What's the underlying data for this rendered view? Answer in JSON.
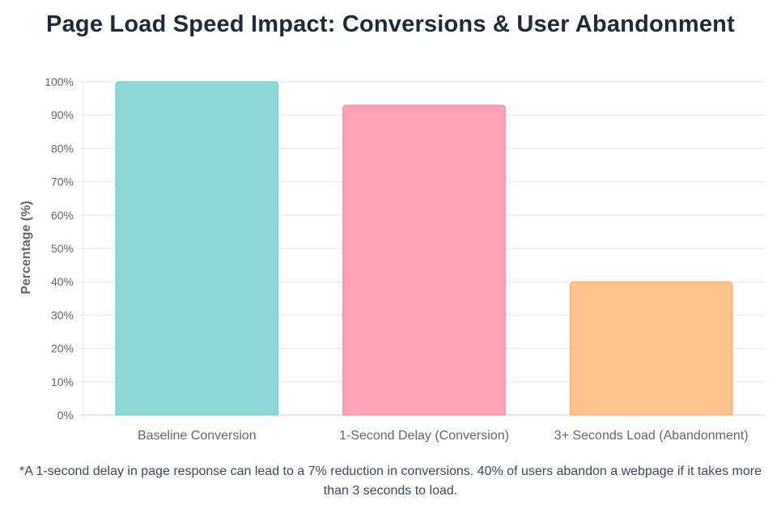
{
  "title": "Page Load Speed Impact: Conversions & User Abandonment",
  "footnote": "*A 1-second delay in page response can lead to a 7% reduction in conversions. 40% of users abandon a webpage if it takes more than 3 seconds to load.",
  "chart_data": {
    "type": "bar",
    "title": "Page Load Speed Impact: Conversions & User Abandonment",
    "xlabel": "",
    "ylabel": "Percentage (%)",
    "ylim": [
      0,
      100
    ],
    "yticks": [
      "0%",
      "10%",
      "20%",
      "30%",
      "40%",
      "50%",
      "60%",
      "70%",
      "80%",
      "90%",
      "100%"
    ],
    "grid": true,
    "categories": [
      "Baseline Conversion",
      "1-Second Delay (Conversion)",
      "3+ Seconds Load (Abandonment)"
    ],
    "values": [
      100,
      93,
      40
    ],
    "colors": [
      "#8ed8d8",
      "#fea3b6",
      "#fec38c"
    ],
    "border_colors": [
      "#6cc9c9",
      "#f48aa3",
      "#f7ab6a"
    ]
  }
}
